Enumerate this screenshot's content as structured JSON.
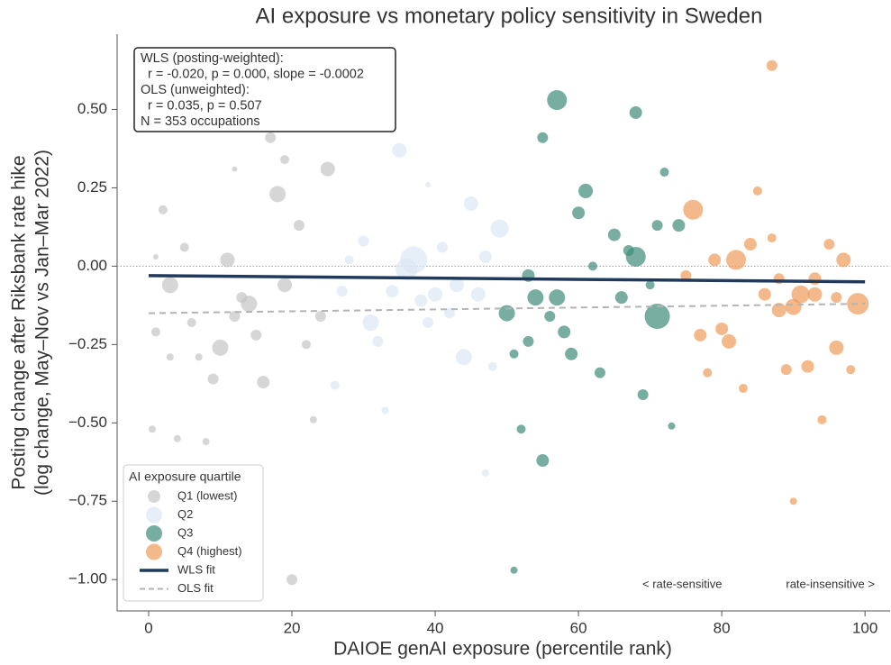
{
  "chart_data": {
    "type": "scatter",
    "title": "AI exposure vs monetary policy sensitivity in Sweden",
    "x_label": "DAIOE genAI exposure (percentile rank)",
    "y_label": [
      "Posting change after Riksbank rate hike",
      "(log change, May–Nov vs Jan–Mar 2022)"
    ],
    "xlim": [
      -4.4,
      103.5
    ],
    "ylim": [
      -1.1,
      0.74
    ],
    "xticks": [
      0,
      20,
      40,
      60,
      80,
      100
    ],
    "yticks": [
      {
        "value": 0.5,
        "label": "0.50"
      },
      {
        "value": 0.25,
        "label": "0.25"
      },
      {
        "value": 0,
        "label": "0.00"
      },
      {
        "value": -0.25,
        "label": "−0.25"
      },
      {
        "value": -0.5,
        "label": "−0.50"
      },
      {
        "value": -0.75,
        "label": "−0.75"
      },
      {
        "value": -1,
        "label": "−1.00"
      }
    ],
    "reference_line": 0,
    "legend_title": "AI exposure quartile",
    "legend_position": "lower left",
    "annotation_lines": [
      "WLS (posting-weighted):",
      "  r = -0.020, p = 0.000, slope = -0.0002",
      "OLS (unweighted):",
      "  r = 0.035, p = 0.507",
      "N = 353 occupations"
    ],
    "annotations": [
      "< rate-sensitive",
      "rate-insensitive >"
    ],
    "series": [
      {
        "name": "Q1 (lowest)",
        "color": "#c4c4c4",
        "x": [
          0.5,
          1,
          2,
          3,
          4,
          5,
          6,
          8,
          9,
          10,
          11,
          12,
          13,
          14,
          15,
          16,
          17,
          18,
          19,
          20,
          21,
          22,
          23,
          24,
          25,
          1,
          3,
          7,
          12,
          19
        ],
        "values": [
          -0.52,
          0.03,
          0.18,
          -0.06,
          -0.55,
          0.06,
          -0.18,
          -0.56,
          -0.36,
          -0.26,
          0.02,
          -0.16,
          -0.1,
          -0.12,
          -0.22,
          -0.37,
          0.41,
          0.23,
          -0.06,
          -1.0,
          0.13,
          -0.25,
          -0.49,
          -0.16,
          0.31,
          -0.21,
          -0.29,
          -0.29,
          0.31,
          0.34
        ],
        "sizes": [
          4,
          3,
          5,
          9,
          4,
          5,
          5,
          4,
          6,
          9,
          8,
          6,
          6,
          9,
          6,
          7,
          6,
          9,
          8,
          6,
          6,
          5,
          4,
          6,
          8,
          5,
          4,
          4,
          3,
          5
        ]
      },
      {
        "name": "Q2",
        "color": "#dbe7f4",
        "x": [
          26,
          27,
          28,
          30,
          31,
          32,
          34,
          35,
          36,
          37,
          38,
          39,
          40,
          41,
          42,
          43,
          44,
          45,
          46,
          47,
          48,
          49,
          47,
          33,
          39
        ],
        "values": [
          -0.38,
          -0.08,
          0.02,
          0.08,
          -0.18,
          -0.24,
          -0.08,
          0.37,
          -0.01,
          0.02,
          -0.11,
          -0.18,
          -0.09,
          0.06,
          -0.15,
          -0.06,
          -0.29,
          0.2,
          -0.09,
          0.03,
          -0.32,
          0.12,
          -0.66,
          -0.46,
          0.26
        ],
        "sizes": [
          5,
          6,
          5,
          6,
          9,
          6,
          7,
          8,
          12,
          15,
          7,
          6,
          8,
          6,
          6,
          8,
          9,
          8,
          8,
          7,
          5,
          10,
          4,
          4,
          3
        ]
      },
      {
        "name": "Q3",
        "color": "#3f8c7a",
        "x": [
          50,
          51,
          51,
          52,
          53,
          53,
          54,
          55,
          55,
          56,
          57,
          57,
          58,
          59,
          60,
          61,
          62,
          63,
          65,
          66,
          67,
          68,
          68,
          69,
          70,
          71,
          71,
          72,
          73,
          74
        ],
        "values": [
          -0.15,
          -0.28,
          -0.97,
          -0.52,
          -0.03,
          -0.24,
          -0.1,
          0.41,
          -0.62,
          -0.16,
          0.53,
          -0.1,
          -0.21,
          -0.28,
          0.17,
          0.24,
          0.0,
          -0.34,
          0.1,
          -0.1,
          0.05,
          0.49,
          0.03,
          -0.41,
          -0.06,
          -0.16,
          0.13,
          0.3,
          -0.51,
          0.13
        ],
        "sizes": [
          9,
          5,
          4,
          5,
          7,
          6,
          9,
          6,
          7,
          6,
          11,
          9,
          7,
          7,
          7,
          8,
          5,
          6,
          7,
          7,
          6,
          7,
          11,
          6,
          5,
          14,
          6,
          5,
          4,
          7
        ]
      },
      {
        "name": "Q4 (highest)",
        "color": "#ef9b58",
        "x": [
          75,
          76,
          77,
          78,
          79,
          80,
          81,
          82,
          83,
          84,
          85,
          86,
          87,
          87,
          88,
          89,
          90,
          90,
          91,
          92,
          93,
          94,
          95,
          96,
          97,
          98,
          99,
          93,
          88,
          96
        ],
        "values": [
          -0.03,
          0.18,
          -0.22,
          -0.34,
          0.02,
          -0.2,
          -0.24,
          0.02,
          -0.39,
          0.07,
          0.24,
          -0.09,
          0.09,
          0.64,
          -0.14,
          -0.33,
          -0.75,
          -0.13,
          -0.09,
          -0.32,
          -0.09,
          -0.49,
          0.07,
          -0.26,
          0.02,
          -0.33,
          -0.12,
          -0.04,
          -0.04,
          -0.1
        ],
        "sizes": [
          6,
          11,
          7,
          5,
          7,
          7,
          8,
          11,
          5,
          7,
          5,
          7,
          5,
          6,
          8,
          6,
          4,
          9,
          10,
          7,
          8,
          5,
          6,
          8,
          8,
          5,
          12,
          7,
          6,
          6
        ]
      },
      {
        "name": "WLS fit",
        "color": "#1f3a5c",
        "line": true,
        "x": [
          0,
          100
        ],
        "values": [
          -0.03,
          -0.05
        ]
      },
      {
        "name": "OLS fit",
        "color": "#b4b4b4",
        "line": true,
        "dashed": true,
        "x": [
          0,
          100
        ],
        "values": [
          -0.15,
          -0.12
        ]
      }
    ]
  }
}
